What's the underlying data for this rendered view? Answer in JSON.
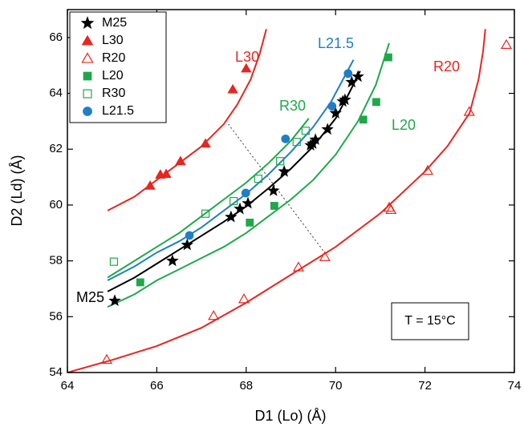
{
  "chart_data": {
    "type": "scatter",
    "xlabel": "D1 (Lo) (Å)",
    "ylabel": "D2 (Ld) (Å)",
    "xlim": [
      64,
      74
    ],
    "ylim": [
      54,
      67
    ],
    "xticks": [
      64,
      66,
      68,
      70,
      72,
      74
    ],
    "yticks": [
      54,
      56,
      58,
      60,
      62,
      64,
      66
    ],
    "legend": "upper left",
    "annotation": "T = 15°C",
    "series": [
      {
        "name": "M25",
        "color": "#000000",
        "marker": "star",
        "x": [
          65.06,
          66.35,
          66.68,
          67.66,
          67.86,
          68.04,
          68.61,
          68.85,
          69.44,
          69.49,
          69.55,
          69.82,
          70.0,
          70.16,
          70.21,
          70.36,
          70.5
        ],
        "y": [
          56.57,
          58.0,
          58.57,
          59.57,
          59.86,
          60.06,
          60.51,
          61.2,
          62.14,
          62.2,
          62.34,
          62.71,
          63.29,
          63.71,
          63.77,
          64.4,
          64.6
        ]
      },
      {
        "name": "L30",
        "color": "#e8251f",
        "marker": "triangle",
        "x": [
          65.85,
          66.08,
          66.21,
          66.53,
          67.09,
          67.7,
          68.0
        ],
        "y": [
          60.69,
          61.09,
          61.11,
          61.57,
          62.2,
          64.14,
          64.89
        ]
      },
      {
        "name": "R20",
        "color": "#e8251f",
        "marker": "triangle-open",
        "x": [
          64.88,
          67.27,
          67.95,
          69.17,
          69.76,
          71.2,
          71.24,
          72.06,
          72.99,
          73.82
        ],
        "y": [
          54.46,
          56.03,
          56.63,
          57.77,
          58.14,
          59.91,
          59.83,
          61.23,
          63.34,
          65.74
        ]
      },
      {
        "name": "L20",
        "color": "#1fa84a",
        "marker": "square",
        "x": [
          65.63,
          68.08,
          68.63,
          70.62,
          70.91,
          71.18
        ],
        "y": [
          57.23,
          59.37,
          59.97,
          63.06,
          63.69,
          65.29
        ]
      },
      {
        "name": "R30",
        "color": "#1fa84a",
        "marker": "square-open",
        "x": [
          65.04,
          67.09,
          67.72,
          68.27,
          68.76,
          69.13,
          69.33
        ],
        "y": [
          57.97,
          59.69,
          60.14,
          60.94,
          61.57,
          62.26,
          62.66
        ]
      },
      {
        "name": "L21.5",
        "color": "#1f7fc4",
        "marker": "circle",
        "x": [
          66.73,
          67.99,
          68.88,
          69.92,
          70.28
        ],
        "y": [
          58.91,
          60.43,
          62.37,
          63.54,
          64.71
        ]
      }
    ],
    "fits": [
      {
        "label": "M25",
        "color": "#000000",
        "x": [
          64.9,
          65.5,
          66,
          66.5,
          67,
          67.5,
          68,
          68.5,
          69,
          69.5,
          70,
          70.3,
          70.55
        ],
        "y": [
          56.9,
          57.4,
          57.9,
          58.4,
          58.9,
          59.4,
          59.95,
          60.6,
          61.3,
          62.1,
          63.1,
          64.0,
          64.8
        ]
      },
      {
        "label": "L30",
        "color": "#e8251f",
        "x": [
          64.9,
          65.5,
          66,
          66.5,
          67,
          67.5,
          67.8,
          68.1,
          68.3,
          68.45
        ],
        "y": [
          59.8,
          60.3,
          60.9,
          61.5,
          62.1,
          62.9,
          63.6,
          64.5,
          65.4,
          66.3
        ]
      },
      {
        "label": "R20",
        "color": "#e8251f",
        "x": [
          64,
          65,
          66,
          67,
          68,
          69,
          70,
          71,
          72,
          72.5,
          73,
          73.2,
          73.3,
          73.35
        ],
        "y": [
          54.0,
          54.45,
          54.95,
          55.6,
          56.5,
          57.5,
          58.5,
          59.7,
          61.2,
          62.1,
          63.3,
          64.5,
          65.5,
          66.3
        ]
      },
      {
        "label": "L20",
        "color": "#1fa84a",
        "x": [
          64.9,
          65.5,
          66,
          66.5,
          67,
          67.5,
          68,
          68.5,
          69,
          69.5,
          70,
          70.5,
          70.9,
          71.2
        ],
        "y": [
          56.35,
          56.8,
          57.3,
          57.7,
          58.1,
          58.5,
          59.0,
          59.6,
          60.2,
          60.9,
          61.8,
          63.0,
          64.3,
          65.8
        ]
      },
      {
        "label": "R30",
        "color": "#1fa84a",
        "x": [
          64.9,
          65.5,
          66,
          66.5,
          67,
          67.5,
          68,
          68.5,
          69,
          69.4
        ],
        "y": [
          57.4,
          58.0,
          58.5,
          59.0,
          59.6,
          60.2,
          60.8,
          61.5,
          62.3,
          63.1
        ]
      },
      {
        "label": "L21.5",
        "color": "#1f7fc4",
        "x": [
          64.9,
          65.5,
          66,
          66.5,
          67,
          67.5,
          68,
          68.5,
          69,
          69.5,
          69.9,
          70.2,
          70.4
        ],
        "y": [
          57.3,
          57.8,
          58.3,
          58.7,
          59.2,
          59.8,
          60.4,
          61.1,
          61.9,
          62.8,
          63.7,
          64.6,
          65.2
        ]
      }
    ],
    "guide": {
      "x": [
        67.6,
        69.8
      ],
      "y": [
        62.9,
        58.2
      ]
    }
  }
}
